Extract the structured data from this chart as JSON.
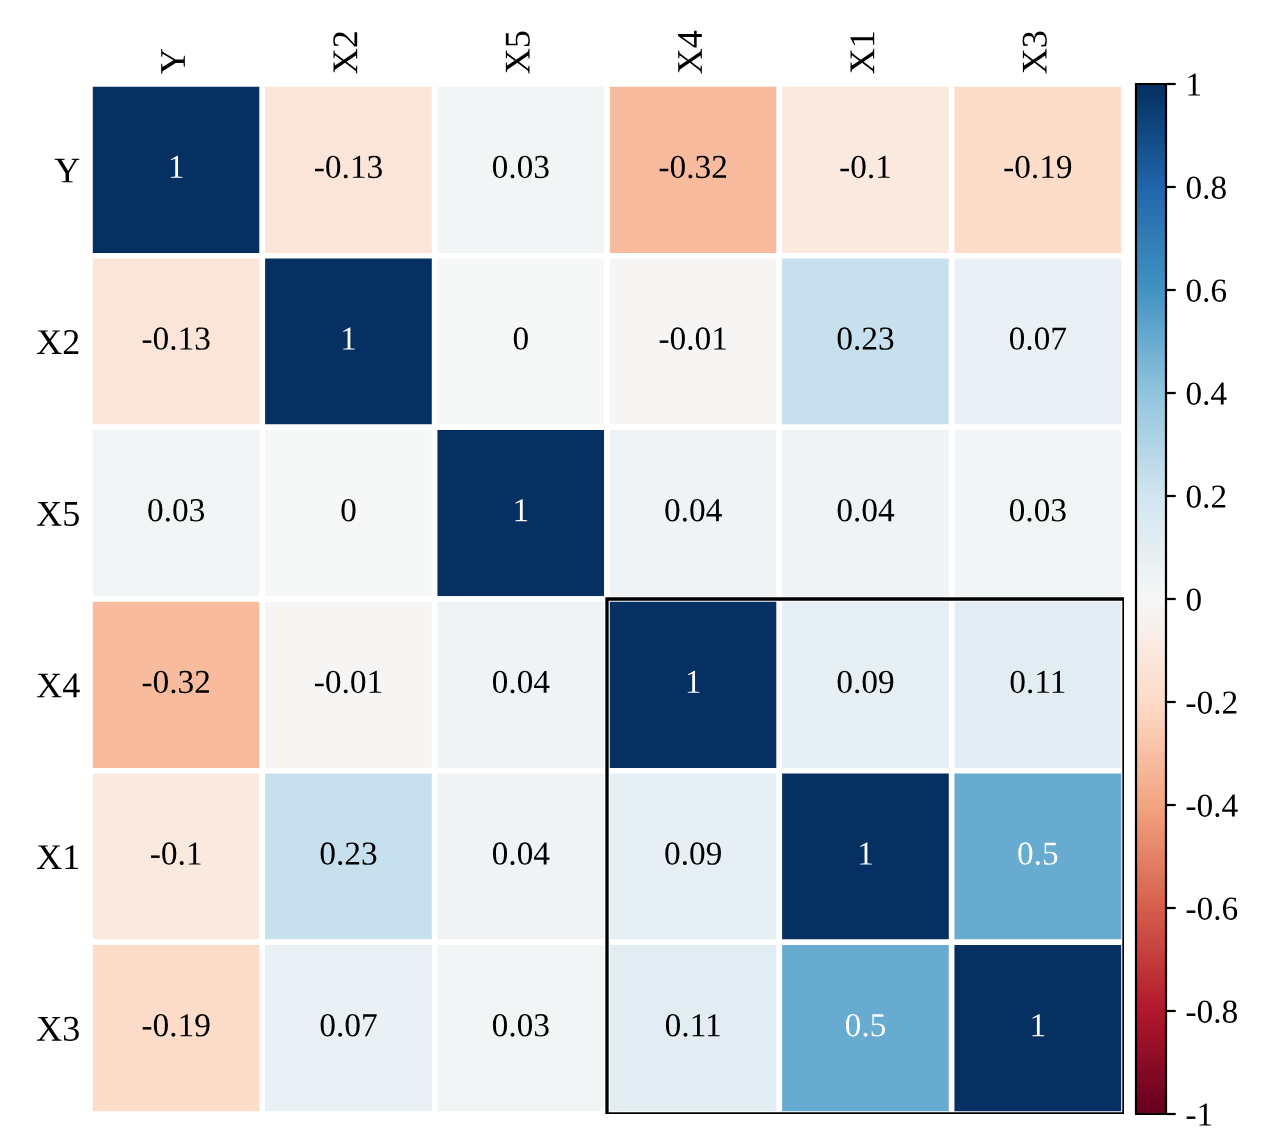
{
  "chart_data": {
    "type": "heatmap",
    "categories": [
      "Y",
      "X2",
      "X5",
      "X4",
      "X1",
      "X3"
    ],
    "y_categories": [
      "Y",
      "X2",
      "X5",
      "X4",
      "X1",
      "X3"
    ],
    "cells": [
      [
        1,
        -0.13,
        0.03,
        -0.32,
        -0.1,
        -0.19
      ],
      [
        -0.13,
        1,
        0,
        -0.01,
        0.23,
        0.07
      ],
      [
        0.03,
        0,
        1,
        0.04,
        0.04,
        0.03
      ],
      [
        -0.32,
        -0.01,
        0.04,
        1,
        0.09,
        0.11
      ],
      [
        -0.1,
        0.23,
        0.04,
        0.09,
        1,
        0.5
      ],
      [
        -0.19,
        0.07,
        0.03,
        0.11,
        0.5,
        1
      ]
    ],
    "data_labels": true,
    "clim": [
      -1,
      1
    ],
    "cticks": [
      -1,
      -0.8,
      -0.6,
      -0.4,
      -0.2,
      0,
      0.2,
      0.4,
      0.6,
      0.8,
      1
    ]
  }
}
